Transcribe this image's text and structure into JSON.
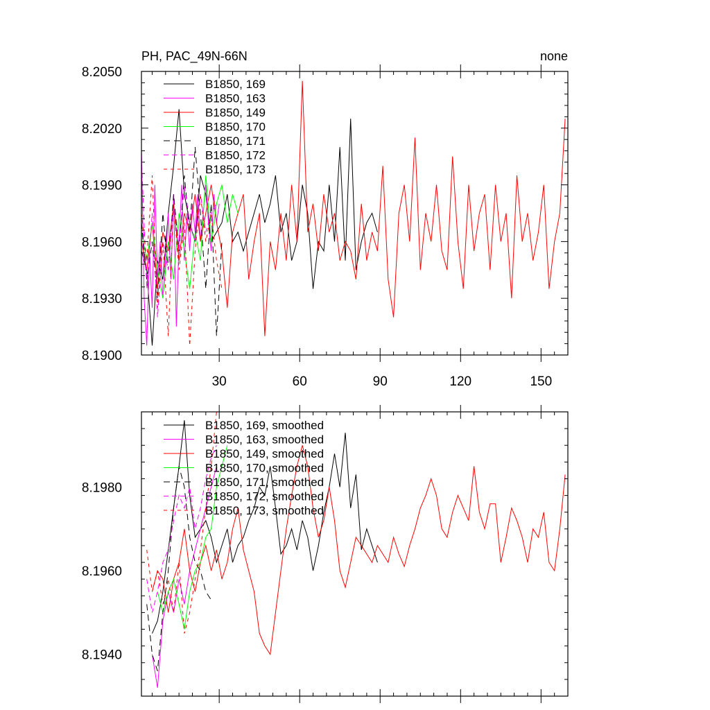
{
  "chart_data": [
    {
      "type": "line",
      "title_left": "PH, PAC_49N-66N",
      "title_right": "none",
      "xlim": [
        1,
        160
      ],
      "ylim": [
        8.19,
        8.205
      ],
      "xticks": [
        30,
        60,
        90,
        120,
        150
      ],
      "xtick_labels": [
        "30",
        "60",
        "90",
        "120",
        "150"
      ],
      "yticks": [
        8.19,
        8.193,
        8.196,
        8.199,
        8.202,
        8.205
      ],
      "ytick_labels": [
        "8.1900",
        "8.1930",
        "8.1960",
        "8.1990",
        "8.2020",
        "8.2050"
      ],
      "grid": false,
      "legend_position": "top-left",
      "series": [
        {
          "name": "B1850, 169",
          "color": "#000000",
          "dash": "solid",
          "x": [
            1,
            3,
            5,
            7,
            9,
            11,
            13,
            15,
            17,
            19,
            21,
            23,
            25,
            27,
            29,
            31,
            33,
            35,
            37,
            39,
            41,
            43,
            45,
            47,
            49,
            51,
            53,
            55,
            57,
            59,
            61,
            63,
            65,
            67,
            69,
            71,
            73,
            75,
            77,
            79,
            81,
            83,
            85,
            87,
            89
          ],
          "y": [
            8.1955,
            8.1945,
            8.1905,
            8.195,
            8.194,
            8.1975,
            8.2,
            8.203,
            8.1985,
            8.197,
            8.196,
            8.1995,
            8.1985,
            8.196,
            8.1965,
            8.197,
            8.1985,
            8.196,
            8.1965,
            8.1955,
            8.1965,
            8.1975,
            8.1985,
            8.197,
            8.198,
            8.1995,
            8.1965,
            8.1975,
            8.195,
            8.196,
            8.199,
            8.1975,
            8.1935,
            8.196,
            8.1955,
            8.199,
            8.196,
            8.201,
            8.195,
            8.2025,
            8.1945,
            8.196,
            8.197,
            8.1975,
            8.1965
          ]
        },
        {
          "name": "B1850, 163",
          "color": "#ff00ff",
          "dash": "solid",
          "x": [
            1,
            2,
            3,
            4,
            5,
            6,
            7,
            8,
            9,
            10,
            11,
            12,
            13,
            14,
            15,
            16,
            17,
            18,
            19,
            20,
            21,
            22,
            23,
            24,
            25,
            26,
            27,
            28,
            29,
            30
          ],
          "y": [
            8.201,
            8.193,
            8.1905,
            8.1955,
            8.1925,
            8.199,
            8.194,
            8.196,
            8.193,
            8.195,
            8.1975,
            8.194,
            8.1985,
            8.1915,
            8.196,
            8.199,
            8.195,
            8.1975,
            8.1955,
            8.198,
            8.1965,
            8.1985,
            8.196,
            8.1975,
            8.199,
            8.197,
            8.1955,
            8.1985,
            8.197,
            8.198
          ]
        },
        {
          "name": "B1850, 149",
          "color": "#ff0000",
          "dash": "solid",
          "x": [
            1,
            3,
            5,
            7,
            9,
            11,
            13,
            15,
            17,
            19,
            21,
            23,
            25,
            27,
            29,
            31,
            33,
            35,
            37,
            39,
            41,
            43,
            45,
            47,
            49,
            51,
            53,
            55,
            57,
            59,
            61,
            63,
            65,
            67,
            69,
            71,
            73,
            75,
            77,
            79,
            81,
            83,
            85,
            87,
            89,
            91,
            93,
            95,
            97,
            99,
            101,
            103,
            105,
            107,
            109,
            111,
            113,
            115,
            117,
            119,
            121,
            123,
            125,
            127,
            129,
            131,
            133,
            135,
            137,
            139,
            141,
            143,
            145,
            147,
            149,
            151,
            153,
            155,
            157,
            159
          ],
          "y": [
            8.196,
            8.1945,
            8.197,
            8.1935,
            8.1965,
            8.1955,
            8.198,
            8.195,
            8.1975,
            8.1965,
            8.1985,
            8.196,
            8.1975,
            8.199,
            8.197,
            8.1955,
            8.1925,
            8.1965,
            8.1975,
            8.1985,
            8.194,
            8.196,
            8.1975,
            8.191,
            8.196,
            8.1945,
            8.1975,
            8.195,
            8.199,
            8.196,
            8.2045,
            8.1965,
            8.198,
            8.1955,
            8.1985,
            8.1965,
            8.1975,
            8.195,
            8.196,
            8.1955,
            8.194,
            8.198,
            8.195,
            8.1965,
            8.1955,
            8.2,
            8.194,
            8.192,
            8.1975,
            8.199,
            8.196,
            8.2015,
            8.1945,
            8.1975,
            8.196,
            8.199,
            8.1955,
            8.1945,
            8.2005,
            8.196,
            8.1935,
            8.199,
            8.1955,
            8.1975,
            8.1985,
            8.1945,
            8.199,
            8.196,
            8.1975,
            8.193,
            8.1995,
            8.196,
            8.1975,
            8.195,
            8.1965,
            8.199,
            8.1935,
            8.196,
            8.1975,
            8.2025
          ]
        },
        {
          "name": "B1850, 170",
          "color": "#00ff00",
          "dash": "solid",
          "x": [
            1,
            3,
            5,
            7,
            9,
            11,
            13,
            15,
            17,
            19,
            21,
            23,
            25,
            27,
            29,
            31,
            33,
            35,
            37
          ],
          "y": [
            8.1965,
            8.195,
            8.197,
            8.1945,
            8.193,
            8.196,
            8.194,
            8.1975,
            8.1955,
            8.1935,
            8.1965,
            8.195,
            8.1995,
            8.196,
            8.198,
            8.199,
            8.197,
            8.1985,
            8.1975
          ]
        },
        {
          "name": "B1850, 171",
          "color": "#000000",
          "dash": "long",
          "x": [
            1,
            3,
            5,
            7,
            9,
            11,
            13,
            15,
            17,
            19,
            21,
            23,
            25,
            27,
            29,
            31
          ],
          "y": [
            8.197,
            8.194,
            8.196,
            8.193,
            8.1975,
            8.1945,
            8.1985,
            8.1955,
            8.1995,
            8.1965,
            8.201,
            8.1975,
            8.1935,
            8.198,
            8.191,
            8.196
          ]
        },
        {
          "name": "B1850, 172",
          "color": "#ff00ff",
          "dash": "medium",
          "x": [
            1,
            3,
            5,
            7,
            9,
            11,
            13,
            15,
            17,
            19,
            21,
            23,
            25,
            27,
            29
          ],
          "y": [
            8.2005,
            8.1935,
            8.1975,
            8.192,
            8.196,
            8.1945,
            8.198,
            8.1955,
            8.199,
            8.197,
            8.196,
            8.1985,
            8.1965,
            8.1975,
            8.198
          ]
        },
        {
          "name": "B1850, 173",
          "color": "#ff0000",
          "dash": "short",
          "x": [
            1,
            3,
            5,
            7,
            9,
            11,
            13,
            15,
            17,
            19,
            21,
            23,
            25,
            27,
            29,
            31
          ],
          "y": [
            8.1975,
            8.195,
            8.1995,
            8.1925,
            8.196,
            8.191,
            8.198,
            8.1945,
            8.197,
            8.1905,
            8.1955,
            8.1985,
            8.196,
            8.1975,
            8.195,
            8.1935
          ]
        }
      ]
    },
    {
      "type": "line",
      "xlim": [
        1,
        160
      ],
      "ylim": [
        8.193,
        8.1998
      ],
      "xticks": [
        30,
        60,
        90,
        120,
        150
      ],
      "yticks": [
        8.194,
        8.196,
        8.198
      ],
      "ytick_labels": [
        "8.1940",
        "8.1960",
        "8.1980"
      ],
      "grid": false,
      "legend_position": "top-left",
      "series": [
        {
          "name": "B1850, 169, smoothed",
          "color": "#000000",
          "dash": "solid",
          "x": [
            5,
            7,
            9,
            11,
            13,
            15,
            17,
            19,
            21,
            23,
            25,
            27,
            29,
            31,
            33,
            35,
            37,
            39,
            41,
            43,
            45,
            47,
            49,
            51,
            53,
            55,
            57,
            59,
            61,
            63,
            65,
            67,
            69,
            71,
            73,
            75,
            77,
            79,
            81,
            83,
            85,
            87,
            89
          ],
          "y": [
            8.1945,
            8.1948,
            8.1955,
            8.1965,
            8.1975,
            8.1985,
            8.1996,
            8.1978,
            8.1968,
            8.197,
            8.1972,
            8.1968,
            8.1962,
            8.1966,
            8.197,
            8.1962,
            8.1966,
            8.1968,
            8.1972,
            8.1975,
            8.198,
            8.1978,
            8.1985,
            8.1975,
            8.1964,
            8.1966,
            8.197,
            8.1965,
            8.1972,
            8.1968,
            8.196,
            8.1966,
            8.1974,
            8.198,
            8.1988,
            8.198,
            8.1993,
            8.1975,
            8.1983,
            8.1965,
            8.197,
            8.1966,
            8.1962
          ]
        },
        {
          "name": "B1850, 163, smoothed",
          "color": "#ff00ff",
          "dash": "solid",
          "x": [
            5,
            7,
            9,
            11,
            13,
            15,
            17,
            19,
            21,
            23,
            25,
            27,
            29
          ],
          "y": [
            8.194,
            8.1932,
            8.1948,
            8.1955,
            8.195,
            8.1958,
            8.1952,
            8.196,
            8.1965,
            8.197,
            8.1975,
            8.198,
            8.1985
          ]
        },
        {
          "name": "B1850, 149, smoothed",
          "color": "#ff0000",
          "dash": "solid",
          "x": [
            5,
            7,
            9,
            11,
            13,
            15,
            17,
            19,
            21,
            23,
            25,
            27,
            29,
            31,
            33,
            35,
            37,
            39,
            41,
            43,
            45,
            47,
            49,
            51,
            53,
            55,
            57,
            59,
            61,
            63,
            65,
            67,
            69,
            71,
            73,
            75,
            77,
            79,
            81,
            83,
            85,
            87,
            89,
            91,
            93,
            95,
            97,
            99,
            101,
            103,
            105,
            107,
            109,
            111,
            113,
            115,
            117,
            119,
            121,
            123,
            125,
            127,
            129,
            131,
            133,
            135,
            137,
            139,
            141,
            143,
            145,
            147,
            149,
            151,
            153,
            155,
            157,
            159
          ],
          "y": [
            8.1955,
            8.196,
            8.1958,
            8.195,
            8.1958,
            8.1962,
            8.197,
            8.196,
            8.1955,
            8.1962,
            8.1966,
            8.196,
            8.1965,
            8.1958,
            8.1962,
            8.197,
            8.1975,
            8.1965,
            8.196,
            8.1955,
            8.1945,
            8.1942,
            8.194,
            8.195,
            8.196,
            8.197,
            8.1978,
            8.1985,
            8.199,
            8.1985,
            8.1975,
            8.1968,
            8.1972,
            8.198,
            8.1972,
            8.196,
            8.1956,
            8.1962,
            8.1968,
            8.1966,
            8.1964,
            8.1962,
            8.1966,
            8.1964,
            8.1962,
            8.1968,
            8.1964,
            8.1961,
            8.1966,
            8.197,
            8.1975,
            8.1978,
            8.1982,
            8.1978,
            8.197,
            8.1968,
            8.1974,
            8.1978,
            8.1975,
            8.1972,
            8.1985,
            8.1974,
            8.197,
            8.1976,
            8.1976,
            8.1962,
            8.1968,
            8.1975,
            8.1972,
            8.1968,
            8.1962,
            8.197,
            8.1968,
            8.1974,
            8.1962,
            8.196,
            8.197,
            8.1983
          ]
        },
        {
          "name": "B1850, 170, smoothed",
          "color": "#00ff00",
          "dash": "solid",
          "x": [
            7,
            9,
            11,
            13,
            15,
            17,
            19,
            21,
            23,
            25,
            27,
            29,
            31,
            33
          ],
          "y": [
            8.1955,
            8.195,
            8.1955,
            8.1958,
            8.1952,
            8.1946,
            8.1955,
            8.196,
            8.1962,
            8.1968,
            8.197,
            8.198,
            8.1985,
            8.199
          ]
        },
        {
          "name": "B1850, 171, smoothed",
          "color": "#000000",
          "dash": "long",
          "x": [
            3,
            5,
            7,
            9,
            11,
            13,
            15,
            17,
            19,
            21,
            23,
            25,
            27
          ],
          "y": [
            8.1952,
            8.194,
            8.1936,
            8.195,
            8.196,
            8.1975,
            8.1985,
            8.198,
            8.1968,
            8.1962,
            8.196,
            8.1955,
            8.1953
          ]
        },
        {
          "name": "B1850, 172, smoothed",
          "color": "#ff00ff",
          "dash": "medium",
          "x": [
            3,
            5,
            7,
            9,
            11,
            13,
            15,
            17,
            19,
            21,
            23,
            25,
            27,
            29
          ],
          "y": [
            8.1958,
            8.195,
            8.1955,
            8.1962,
            8.1965,
            8.1972,
            8.1978,
            8.1975,
            8.198,
            8.197,
            8.1975,
            8.1982,
            8.1987,
            8.199
          ]
        },
        {
          "name": "B1850, 173, smoothed",
          "color": "#ff0000",
          "dash": "short",
          "x": [
            3,
            5,
            7,
            9,
            11,
            13,
            15,
            17,
            19,
            21,
            23,
            25,
            27,
            29
          ],
          "y": [
            8.1965,
            8.1955,
            8.196,
            8.1952,
            8.1958,
            8.195,
            8.1962,
            8.1945,
            8.195,
            8.1958,
            8.1965,
            8.1975,
            8.1985,
            8.1998
          ]
        }
      ]
    }
  ]
}
